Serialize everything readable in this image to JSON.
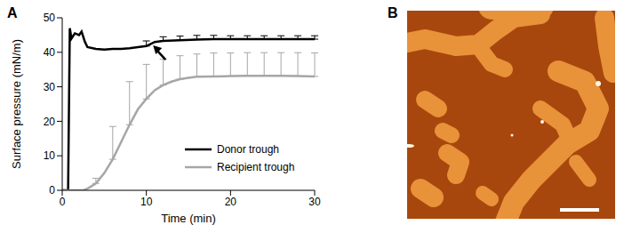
{
  "panel_labels": [
    "A",
    "B"
  ],
  "chart_data": {
    "type": "line",
    "x_label": "Time (min)",
    "y_label": "Surface pressure (mN/m)",
    "xlim": [
      0,
      30
    ],
    "xticks": [
      0,
      10,
      20,
      30
    ],
    "ylim": [
      0,
      50
    ],
    "yticks": [
      0,
      10,
      20,
      30,
      40,
      50
    ],
    "grid": false,
    "legend": "lower right",
    "series": [
      {
        "name": "Donor trough",
        "color": "#000000",
        "x": [
          0,
          0.7,
          0.9,
          1.1,
          1.5,
          2,
          2.3,
          2.7,
          3,
          4,
          5,
          6,
          7,
          8,
          9,
          10,
          11,
          12,
          14,
          16,
          18,
          20,
          22,
          24,
          26,
          28,
          30
        ],
        "values": [
          0,
          0,
          47,
          44,
          45.5,
          45,
          46,
          43,
          41.5,
          41,
          40.8,
          41,
          41,
          41.2,
          41.5,
          41.8,
          43,
          43.3,
          43.5,
          43.7,
          43.8,
          43.8,
          43.8,
          43.8,
          43.8,
          43.8,
          43.8
        ],
        "error": [
          null,
          null,
          null,
          null,
          null,
          null,
          null,
          null,
          null,
          null,
          null,
          null,
          null,
          null,
          null,
          1.5,
          null,
          1.2,
          1.2,
          1.2,
          1.1,
          1,
          1,
          1,
          1,
          1,
          1
        ]
      },
      {
        "name": "Recipient trough",
        "color": "#a6a6a6",
        "x": [
          0,
          1,
          2,
          2.5,
          3,
          4,
          5,
          6,
          7,
          8,
          9,
          10,
          11,
          12,
          13,
          14,
          15,
          16,
          18,
          20,
          22,
          24,
          26,
          28,
          30
        ],
        "values": [
          0,
          0,
          0,
          0,
          0.5,
          2,
          5,
          9,
          14,
          19,
          23.5,
          26.5,
          29,
          30.5,
          31.5,
          32.2,
          32.6,
          32.9,
          33,
          33.1,
          33.2,
          33.2,
          33.2,
          33.1,
          33
        ],
        "error": [
          null,
          null,
          null,
          null,
          null,
          1.5,
          null,
          9.5,
          null,
          12.5,
          null,
          10,
          null,
          7.5,
          null,
          6.8,
          null,
          6.6,
          6.8,
          6.7,
          6.7,
          6.7,
          6.7,
          6.8,
          6.8
        ]
      }
    ],
    "annotations": [
      {
        "marker": "arrow",
        "x": 10.8,
        "y": 42
      }
    ]
  }
}
